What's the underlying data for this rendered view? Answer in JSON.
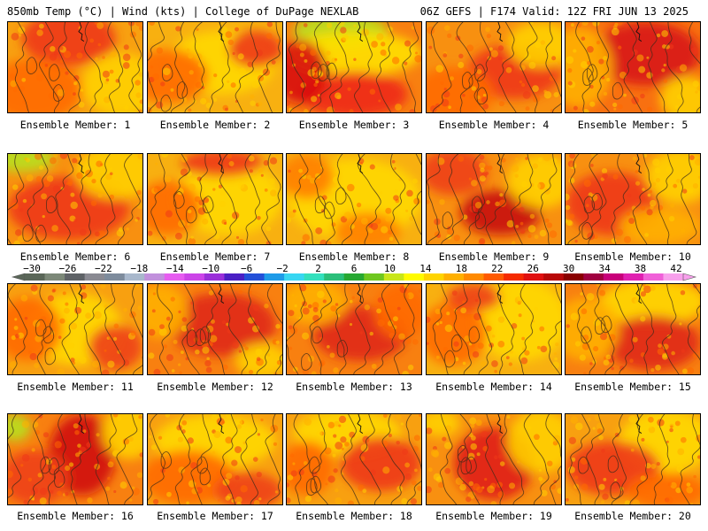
{
  "header": {
    "left_title": "850mb Temp (°C) | Wind (kts) | College of DuPage NEXLAB",
    "right_title": "06Z GEFS | F174 Valid: 12Z FRI JUN 13 2025"
  },
  "members": [
    {
      "label": "Ensemble Member: 1"
    },
    {
      "label": "Ensemble Member: 2"
    },
    {
      "label": "Ensemble Member: 3"
    },
    {
      "label": "Ensemble Member: 4"
    },
    {
      "label": "Ensemble Member: 5"
    },
    {
      "label": "Ensemble Member: 6"
    },
    {
      "label": "Ensemble Member: 7"
    },
    {
      "label": "Ensemble Member: 8"
    },
    {
      "label": "Ensemble Member: 9"
    },
    {
      "label": "Ensemble Member: 10"
    },
    {
      "label": "Ensemble Member: 11"
    },
    {
      "label": "Ensemble Member: 12"
    },
    {
      "label": "Ensemble Member: 13"
    },
    {
      "label": "Ensemble Member: 14"
    },
    {
      "label": "Ensemble Member: 15"
    },
    {
      "label": "Ensemble Member: 16"
    },
    {
      "label": "Ensemble Member: 17"
    },
    {
      "label": "Ensemble Member: 18"
    },
    {
      "label": "Ensemble Member: 19"
    },
    {
      "label": "Ensemble Member: 20"
    }
  ],
  "colorbar": {
    "ticks": [
      "−30",
      "−26",
      "−22",
      "−18",
      "−14",
      "−10",
      "−6",
      "−2",
      "2",
      "6",
      "10",
      "14",
      "18",
      "22",
      "26",
      "30",
      "34",
      "38",
      "42"
    ],
    "colors": [
      "#5a6658",
      "#7c8878",
      "#5e6266",
      "#8a8a92",
      "#7d8b9c",
      "#a9b8cc",
      "#c190dc",
      "#e65cf0",
      "#cc44e8",
      "#9a2fd9",
      "#4a1fc4",
      "#2350d8",
      "#1e9be8",
      "#37d6f2",
      "#33e0bd",
      "#2bbf7a",
      "#27a832",
      "#6ec71f",
      "#c8e61a",
      "#fffb00",
      "#ffd400",
      "#ffb000",
      "#ff8a00",
      "#ff5a00",
      "#f52a00",
      "#e01010",
      "#b80808",
      "#8a0000",
      "#a00040",
      "#c8007a",
      "#e020b0",
      "#f060d8",
      "#f8a0ec"
    ]
  },
  "panel_fields": [
    {
      "base": "#f8a010",
      "blobs": [
        [
          "#ee3818",
          0.45,
          0.18,
          0.35,
          0.3
        ],
        [
          "#ffd000",
          0.85,
          0.7,
          0.3,
          0.35
        ],
        [
          "#ff6a00",
          0.2,
          0.75,
          0.35,
          0.35
        ]
      ]
    },
    {
      "base": "#f8b010",
      "blobs": [
        [
          "#ffd800",
          0.55,
          0.45,
          0.4,
          0.35
        ],
        [
          "#ff6a00",
          0.15,
          0.6,
          0.3,
          0.3
        ],
        [
          "#ee3818",
          0.8,
          0.3,
          0.2,
          0.2
        ]
      ]
    },
    {
      "base": "#f88010",
      "blobs": [
        [
          "#b8e020",
          0.4,
          0.1,
          0.35,
          0.2
        ],
        [
          "#ffe000",
          0.5,
          0.35,
          0.5,
          0.25
        ],
        [
          "#ee2818",
          0.5,
          0.8,
          0.4,
          0.25
        ],
        [
          "#d81010",
          0.1,
          0.55,
          0.2,
          0.35
        ]
      ]
    },
    {
      "base": "#f89010",
      "blobs": [
        [
          "#ee3818",
          0.65,
          0.55,
          0.35,
          0.3
        ],
        [
          "#ffd000",
          0.85,
          0.25,
          0.25,
          0.25
        ],
        [
          "#ff6a00",
          0.2,
          0.8,
          0.3,
          0.3
        ]
      ]
    },
    {
      "base": "#f87010",
      "blobs": [
        [
          "#d81818",
          0.6,
          0.35,
          0.4,
          0.35
        ],
        [
          "#ffb000",
          0.1,
          0.5,
          0.25,
          0.45
        ],
        [
          "#ffd000",
          0.9,
          0.85,
          0.2,
          0.25
        ]
      ]
    },
    {
      "base": "#f89010",
      "blobs": [
        [
          "#b8e020",
          0.1,
          0.05,
          0.25,
          0.15
        ],
        [
          "#ee3818",
          0.45,
          0.6,
          0.45,
          0.35
        ],
        [
          "#ffd000",
          0.8,
          0.2,
          0.3,
          0.3
        ]
      ]
    },
    {
      "base": "#f8b010",
      "blobs": [
        [
          "#ffd800",
          0.6,
          0.5,
          0.4,
          0.4
        ],
        [
          "#ff6a00",
          0.15,
          0.6,
          0.25,
          0.3
        ],
        [
          "#ee3818",
          0.55,
          0.1,
          0.3,
          0.15
        ]
      ]
    },
    {
      "base": "#f8b010",
      "blobs": [
        [
          "#ffd800",
          0.5,
          0.5,
          0.5,
          0.45
        ],
        [
          "#ff8000",
          0.15,
          0.25,
          0.2,
          0.25
        ],
        [
          "#ff8000",
          0.6,
          0.85,
          0.25,
          0.2
        ]
      ]
    },
    {
      "base": "#f89010",
      "blobs": [
        [
          "#c81010",
          0.55,
          0.65,
          0.3,
          0.25
        ],
        [
          "#ffd000",
          0.85,
          0.3,
          0.25,
          0.3
        ],
        [
          "#ee4018",
          0.2,
          0.2,
          0.25,
          0.25
        ]
      ]
    },
    {
      "base": "#f89010",
      "blobs": [
        [
          "#ee3818",
          0.35,
          0.55,
          0.35,
          0.35
        ],
        [
          "#ffd000",
          0.85,
          0.25,
          0.25,
          0.3
        ],
        [
          "#ffb000",
          0.7,
          0.8,
          0.3,
          0.2
        ]
      ]
    },
    {
      "base": "#f8a010",
      "blobs": [
        [
          "#ffd800",
          0.5,
          0.5,
          0.35,
          0.4
        ],
        [
          "#ff6a00",
          0.15,
          0.5,
          0.25,
          0.35
        ],
        [
          "#ee4018",
          0.8,
          0.7,
          0.2,
          0.25
        ]
      ]
    },
    {
      "base": "#f88010",
      "blobs": [
        [
          "#e02818",
          0.55,
          0.45,
          0.4,
          0.35
        ],
        [
          "#ffb000",
          0.1,
          0.3,
          0.2,
          0.3
        ],
        [
          "#ffd000",
          0.85,
          0.85,
          0.2,
          0.2
        ]
      ]
    },
    {
      "base": "#f88010",
      "blobs": [
        [
          "#e02818",
          0.55,
          0.55,
          0.35,
          0.3
        ],
        [
          "#ffb000",
          0.2,
          0.2,
          0.25,
          0.25
        ],
        [
          "#ff6a00",
          0.85,
          0.3,
          0.2,
          0.3
        ]
      ]
    },
    {
      "base": "#f8b010",
      "blobs": [
        [
          "#ffd800",
          0.7,
          0.4,
          0.35,
          0.45
        ],
        [
          "#ff6a00",
          0.2,
          0.55,
          0.25,
          0.35
        ],
        [
          "#ee4018",
          0.35,
          0.15,
          0.2,
          0.15
        ]
      ]
    },
    {
      "base": "#f88010",
      "blobs": [
        [
          "#ffd800",
          0.65,
          0.2,
          0.4,
          0.25
        ],
        [
          "#e02818",
          0.65,
          0.65,
          0.35,
          0.3
        ],
        [
          "#ffb000",
          0.15,
          0.5,
          0.25,
          0.35
        ]
      ]
    },
    {
      "base": "#f88010",
      "blobs": [
        [
          "#b8e020",
          0.05,
          0.15,
          0.12,
          0.15
        ],
        [
          "#d01010",
          0.55,
          0.45,
          0.25,
          0.45
        ],
        [
          "#ffd000",
          0.9,
          0.2,
          0.2,
          0.3
        ],
        [
          "#ee4018",
          0.2,
          0.7,
          0.25,
          0.3
        ]
      ]
    },
    {
      "base": "#f8a010",
      "blobs": [
        [
          "#ffd800",
          0.5,
          0.3,
          0.45,
          0.3
        ],
        [
          "#ff6a00",
          0.3,
          0.7,
          0.35,
          0.3
        ],
        [
          "#ee4018",
          0.75,
          0.85,
          0.25,
          0.2
        ]
      ]
    },
    {
      "base": "#f8a010",
      "blobs": [
        [
          "#ffd800",
          0.45,
          0.2,
          0.4,
          0.25
        ],
        [
          "#ff6a00",
          0.15,
          0.6,
          0.2,
          0.3
        ],
        [
          "#ee3818",
          0.7,
          0.55,
          0.3,
          0.3
        ]
      ]
    },
    {
      "base": "#f89010",
      "blobs": [
        [
          "#e02018",
          0.5,
          0.55,
          0.3,
          0.4
        ],
        [
          "#ffd000",
          0.85,
          0.3,
          0.25,
          0.35
        ],
        [
          "#ffd000",
          0.1,
          0.1,
          0.15,
          0.15
        ]
      ]
    },
    {
      "base": "#f8a010",
      "blobs": [
        [
          "#ffd800",
          0.75,
          0.3,
          0.35,
          0.35
        ],
        [
          "#ee3818",
          0.35,
          0.6,
          0.35,
          0.3
        ],
        [
          "#ff6a00",
          0.75,
          0.85,
          0.3,
          0.2
        ]
      ]
    }
  ]
}
